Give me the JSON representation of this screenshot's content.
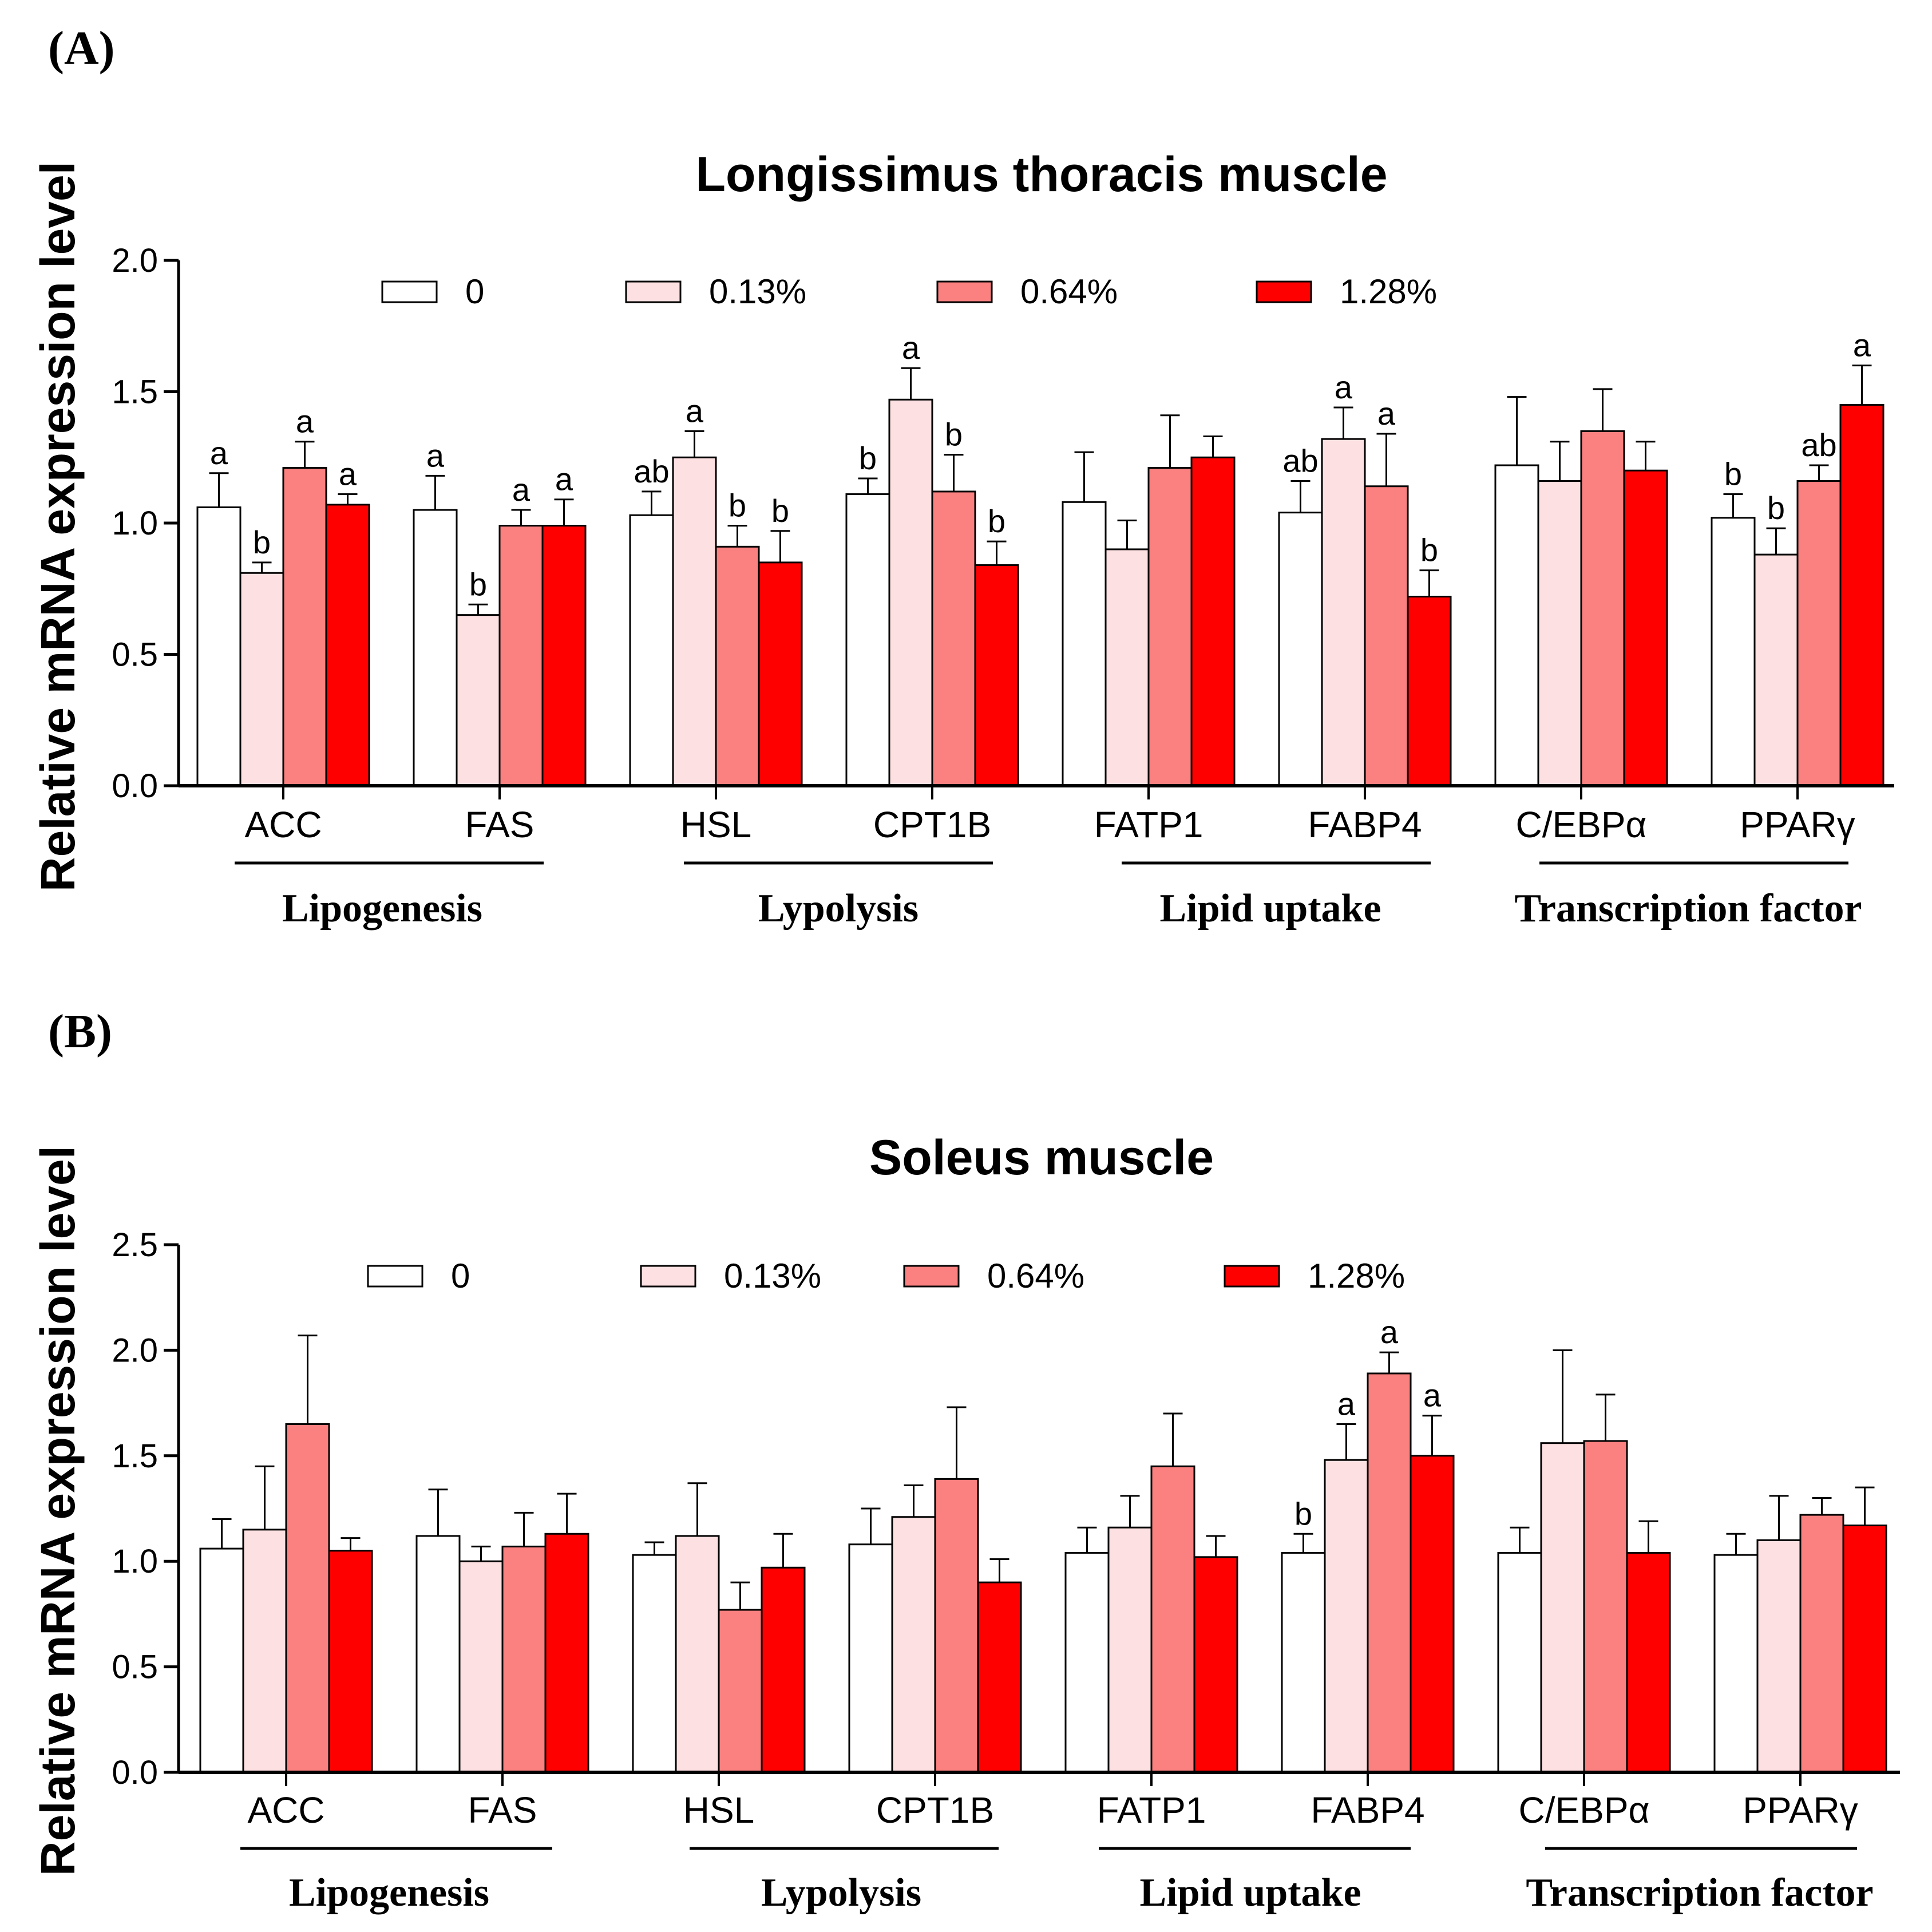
{
  "colors": {
    "0": "#ffffff",
    "0.13%": "#fde0e1",
    "0.64%": "#fb8080",
    "1.28%": "#ff0000",
    "axis": "#000000"
  },
  "chart_data": [
    {
      "panel": "(A)",
      "type": "bar",
      "title": "Longissimus thoracis muscle",
      "ylabel": "Relative mRNA expression level",
      "ylim": [
        0,
        2.0
      ],
      "yticks": [
        "0.0",
        "0.5",
        "1.0",
        "1.5",
        "2.0"
      ],
      "categories": [
        "ACC",
        "FAS",
        "HSL",
        "CPT1B",
        "FATP1",
        "FABP4",
        "C/EBPα",
        "PPARγ"
      ],
      "groups": [
        {
          "label": "Lipogenesis",
          "categories": [
            "ACC",
            "FAS"
          ]
        },
        {
          "label": "Lypolysis",
          "categories": [
            "HSL",
            "CPT1B"
          ]
        },
        {
          "label": "Lipid uptake",
          "categories": [
            "FATP1",
            "FABP4"
          ]
        },
        {
          "label": "Transcription factor",
          "categories": [
            "C/EBPα",
            "PPARγ"
          ]
        }
      ],
      "series": [
        {
          "name": "0",
          "values": [
            1.06,
            1.05,
            1.03,
            1.11,
            1.08,
            1.04,
            1.22,
            1.02
          ],
          "errors": [
            0.13,
            0.13,
            0.09,
            0.06,
            0.19,
            0.12,
            0.26,
            0.09
          ],
          "labels": [
            "a",
            "a",
            "ab",
            "b",
            "",
            "ab",
            "",
            "b"
          ]
        },
        {
          "name": "0.13%",
          "values": [
            0.81,
            0.65,
            1.25,
            1.47,
            0.9,
            1.32,
            1.16,
            0.88
          ],
          "errors": [
            0.04,
            0.04,
            0.1,
            0.12,
            0.11,
            0.12,
            0.15,
            0.1
          ],
          "labels": [
            "b",
            "b",
            "a",
            "a",
            "",
            "a",
            "",
            "b"
          ]
        },
        {
          "name": "0.64%",
          "values": [
            1.21,
            0.99,
            0.91,
            1.12,
            1.21,
            1.14,
            1.35,
            1.16
          ],
          "errors": [
            0.1,
            0.06,
            0.08,
            0.14,
            0.2,
            0.2,
            0.16,
            0.06
          ],
          "labels": [
            "a",
            "a",
            "b",
            "b",
            "",
            "a",
            "",
            "ab"
          ]
        },
        {
          "name": "1.28%",
          "values": [
            1.07,
            0.99,
            0.85,
            0.84,
            1.25,
            0.72,
            1.2,
            1.45
          ],
          "errors": [
            0.04,
            0.1,
            0.12,
            0.09,
            0.08,
            0.1,
            0.11,
            0.15
          ],
          "labels": [
            "a",
            "a",
            "b",
            "b",
            "",
            "b",
            "",
            "a"
          ]
        }
      ]
    },
    {
      "panel": "(B)",
      "type": "bar",
      "title": "Soleus muscle",
      "ylabel": "Relative mRNA expression level",
      "ylim": [
        0,
        2.5
      ],
      "yticks": [
        "0.0",
        "0.5",
        "1.0",
        "1.5",
        "2.0",
        "2.5"
      ],
      "categories": [
        "ACC",
        "FAS",
        "HSL",
        "CPT1B",
        "FATP1",
        "FABP4",
        "C/EBPα",
        "PPARγ"
      ],
      "groups": [
        {
          "label": "Lipogenesis",
          "categories": [
            "ACC",
            "FAS"
          ]
        },
        {
          "label": "Lypolysis",
          "categories": [
            "HSL",
            "CPT1B"
          ]
        },
        {
          "label": "Lipid uptake",
          "categories": [
            "FATP1",
            "FABP4"
          ]
        },
        {
          "label": "Transcription factor",
          "categories": [
            "C/EBPα",
            "PPARγ"
          ]
        }
      ],
      "series": [
        {
          "name": "0",
          "values": [
            1.06,
            1.12,
            1.03,
            1.08,
            1.04,
            1.04,
            1.04,
            1.03
          ],
          "errors": [
            0.14,
            0.22,
            0.06,
            0.17,
            0.12,
            0.09,
            0.12,
            0.1
          ],
          "labels": [
            "",
            "",
            "",
            "",
            "",
            "b",
            "",
            ""
          ]
        },
        {
          "name": "0.13%",
          "values": [
            1.15,
            1.0,
            1.12,
            1.21,
            1.16,
            1.48,
            1.56,
            1.1
          ],
          "errors": [
            0.3,
            0.07,
            0.25,
            0.15,
            0.15,
            0.17,
            0.44,
            0.21
          ],
          "labels": [
            "",
            "",
            "",
            "",
            "",
            "a",
            "",
            ""
          ]
        },
        {
          "name": "0.64%",
          "values": [
            1.65,
            1.07,
            0.77,
            1.39,
            1.45,
            1.89,
            1.57,
            1.22
          ],
          "errors": [
            0.42,
            0.16,
            0.13,
            0.34,
            0.25,
            0.1,
            0.22,
            0.08
          ],
          "labels": [
            "",
            "",
            "",
            "",
            "",
            "a",
            "",
            ""
          ]
        },
        {
          "name": "1.28%",
          "values": [
            1.05,
            1.13,
            0.97,
            0.9,
            1.02,
            1.5,
            1.04,
            1.17
          ],
          "errors": [
            0.06,
            0.19,
            0.16,
            0.11,
            0.1,
            0.19,
            0.15,
            0.18
          ],
          "labels": [
            "",
            "",
            "",
            "",
            "",
            "a",
            "",
            ""
          ]
        }
      ]
    }
  ]
}
